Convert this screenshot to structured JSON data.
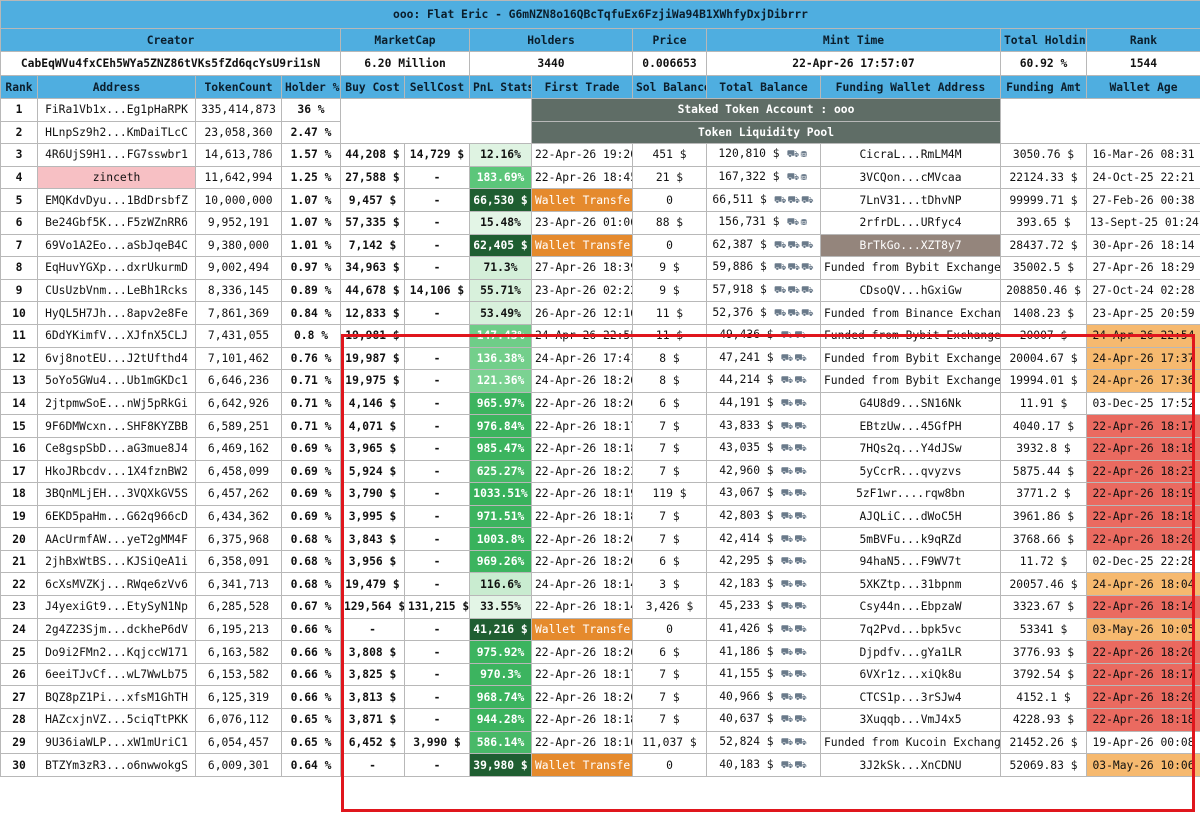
{
  "title": "ooo: Flat Eric - G6mNZN8o16QBcTqfuEx6FzjiWa94B1XWhfyDxjDibrrr",
  "summary": {
    "headers": [
      "Creator",
      "MarketCap",
      "Holders",
      "Price",
      "Mint Time",
      "Total Holding",
      "Rank"
    ],
    "values": [
      "CabEqWVu4fxCEh5WYa5ZNZ86tVKs5fZd6qcYsU9ri1sN",
      "6.20 Million",
      "3440",
      "0.006653",
      "22-Apr-26 17:57:07",
      "60.92 %",
      "1544"
    ]
  },
  "columns": [
    "Rank",
    "Address",
    "TokenCount",
    "Holder %",
    "Buy Cost",
    "SellCost",
    "PnL Stats",
    "First Trade",
    "Sol Balance",
    "Total Balance",
    "Funding Wallet Address",
    "Funding Amt",
    "Wallet Age"
  ],
  "merged": {
    "staked": "Staked Token Account : ooo",
    "pool": "Token Liquidity Pool"
  },
  "colors": {
    "header": "#4faee0",
    "staked": "#5f6d66",
    "wallet_transfer": "#e58a2d",
    "age_orange": "#f6b96f",
    "age_red": "#ea6a60",
    "highlight": "#e0161d"
  },
  "rows": [
    {
      "rank": "1",
      "address": "FiRa1Vb1x...Eg1pHaRPK",
      "count": "335,414,873",
      "pct": "36 %"
    },
    {
      "rank": "2",
      "address": "HLnpSz9h2...KmDaiTLcC",
      "count": "23,058,360",
      "pct": "2.47 %"
    },
    {
      "rank": "3",
      "address": "4R6UjS9H1...FG7sswbr1",
      "count": "14,613,786",
      "pct": "1.57 %",
      "buy": "44,208 $",
      "sell": "14,729 $",
      "pnl": "12.16%",
      "pnlColor": "#dff3e2",
      "pnlText": "#111",
      "first": "22-Apr-26 19:20",
      "sol": "451 $",
      "total": "120,810 $",
      "icons": "⛟⛃",
      "funding": "CicraL...RmLM4M",
      "amt": "3050.76 $",
      "age": "16-Mar-26 08:31",
      "ageClass": ""
    },
    {
      "rank": "4",
      "address": "zinceth",
      "addrClass": "pink",
      "count": "11,642,994",
      "pct": "1.25 %",
      "buy": "27,588 $",
      "sell": "-",
      "pnl": "183.69%",
      "pnlColor": "#5cc67a",
      "pnlText": "#fff",
      "first": "22-Apr-26 18:45",
      "sol": "21 $",
      "total": "167,322 $",
      "icons": "⛟⛃",
      "funding": "3VCQon...cMVcaa",
      "amt": "22124.33 $",
      "age": "24-Oct-25 22:21",
      "ageClass": ""
    },
    {
      "rank": "5",
      "address": "EMQKdvDyu...1BdDrsbfZ",
      "count": "10,000,000",
      "pct": "1.07 %",
      "buy": "9,457 $",
      "sell": "-",
      "pnl": "66,530 $",
      "pnlColor": "#1f5e31",
      "pnlText": "#fff",
      "first": "Wallet Transfer",
      "firstClass": "wt",
      "sol": "0",
      "total": "66,511 $",
      "icons": "⛟⛟⛟",
      "funding": "7LnV31...tDhvNP",
      "amt": "99999.71 $",
      "age": "27-Feb-26 00:38",
      "ageClass": ""
    },
    {
      "rank": "6",
      "address": "Be24Gbf5K...F5zWZnRR6",
      "count": "9,952,191",
      "pct": "1.07 %",
      "buy": "57,335 $",
      "sell": "-",
      "pnl": "15.48%",
      "pnlColor": "#e3f5e6",
      "pnlText": "#111",
      "first": "23-Apr-26 01:06",
      "sol": "88 $",
      "total": "156,731 $",
      "icons": "⛟⛃",
      "funding": "2rfrDL...URfyc4",
      "amt": "393.65 $",
      "age": "13-Sept-25 01:24",
      "ageClass": ""
    },
    {
      "rank": "7",
      "address": "69Vo1A2Eo...aSbJqeB4C",
      "count": "9,380,000",
      "pct": "1.01 %",
      "buy": "7,142 $",
      "sell": "-",
      "pnl": "62,405 $",
      "pnlColor": "#1f5e31",
      "pnlText": "#fff",
      "first": "Wallet Transfer",
      "firstClass": "wt",
      "sol": "0",
      "total": "62,387 $",
      "icons": "⛟⛟⛟",
      "funding": "BrTkGo...XZT8y7",
      "fundClass": "brown",
      "amt": "28437.72 $",
      "age": "30-Apr-26 18:14",
      "ageClass": ""
    },
    {
      "rank": "8",
      "address": "EqHuvYGXp...dxrUkurmD",
      "count": "9,002,494",
      "pct": "0.97 %",
      "buy": "34,963 $",
      "sell": "-",
      "pnl": "71.3%",
      "pnlColor": "#d4efd9",
      "pnlText": "#111",
      "first": "27-Apr-26 18:39",
      "sol": "9 $",
      "total": "59,886 $",
      "icons": "⛟⛟⛟",
      "funding": "Funded from Bybit Exchange",
      "amt": "35002.5 $",
      "age": "27-Apr-26 18:29",
      "ageClass": ""
    },
    {
      "rank": "9",
      "address": "CUsUzbVnm...LeBh1Rcks",
      "count": "8,336,145",
      "pct": "0.89 %",
      "buy": "44,678 $",
      "sell": "14,106 $",
      "pnl": "55.71%",
      "pnlColor": "#d8f1dc",
      "pnlText": "#111",
      "first": "23-Apr-26 02:22",
      "sol": "9 $",
      "total": "57,918 $",
      "icons": "⛟⛟⛟",
      "funding": "CDsoQV...hGxiGw",
      "amt": "208850.46 $",
      "age": "27-Oct-24 02:28",
      "ageClass": ""
    },
    {
      "rank": "10",
      "address": "HyQL5H7Jh...8apv2e8Fe",
      "count": "7,861,369",
      "pct": "0.84 %",
      "buy": "12,833 $",
      "sell": "-",
      "pnl": "53.49%",
      "pnlColor": "#d8f1dc",
      "pnlText": "#111",
      "first": "26-Apr-26 12:16",
      "sol": "11 $",
      "total": "52,376 $",
      "icons": "⛟⛟⛟",
      "funding": "Funded from Binance Exchange",
      "amt": "1408.23 $",
      "age": "23-Apr-25 20:59",
      "ageClass": ""
    },
    {
      "rank": "11",
      "address": "6DdYKimfV...XJfnX5CLJ",
      "count": "7,431,055",
      "pct": "0.8 %",
      "buy": "19,981 $",
      "sell": "-",
      "pnl": "147.43%",
      "pnlColor": "#6fcd88",
      "pnlText": "#fff",
      "first": "24-Apr-26 22:55",
      "sol": "11 $",
      "total": "49,436 $",
      "icons": "⛟⛟",
      "funding": "Funded from Bybit Exchange",
      "amt": "20007 $",
      "age": "24-Apr-26 22:54",
      "ageClass": "age-orange"
    },
    {
      "rank": "12",
      "address": "6vj8notEU...J2tUfthd4",
      "count": "7,101,462",
      "pct": "0.76 %",
      "buy": "19,987 $",
      "sell": "-",
      "pnl": "136.38%",
      "pnlColor": "#73cf8b",
      "pnlText": "#fff",
      "first": "24-Apr-26 17:41",
      "sol": "8 $",
      "total": "47,241 $",
      "icons": "⛟⛟",
      "funding": "Funded from Bybit Exchange",
      "amt": "20004.67 $",
      "age": "24-Apr-26 17:37",
      "ageClass": "age-orange"
    },
    {
      "rank": "13",
      "address": "5oYo5GWu4...Ub1mGKDc1",
      "count": "6,646,236",
      "pct": "0.71 %",
      "buy": "19,975 $",
      "sell": "-",
      "pnl": "121.36%",
      "pnlColor": "#7bd292",
      "pnlText": "#fff",
      "first": "24-Apr-26 18:26",
      "sol": "8 $",
      "total": "44,214 $",
      "icons": "⛟⛟",
      "funding": "Funded from Bybit Exchange",
      "amt": "19994.01 $",
      "age": "24-Apr-26 17:36",
      "ageClass": "age-orange"
    },
    {
      "rank": "14",
      "address": "2jtpmwSoE...nWj5pRkGi",
      "count": "6,642,926",
      "pct": "0.71 %",
      "buy": "4,146 $",
      "sell": "-",
      "pnl": "965.97%",
      "pnlColor": "#3cb45f",
      "pnlText": "#fff",
      "first": "22-Apr-26 18:20",
      "sol": "6 $",
      "total": "44,191 $",
      "icons": "⛟⛟",
      "funding": "G4U8d9...SN16Nk",
      "amt": "11.91 $",
      "age": "03-Dec-25 17:52",
      "ageClass": ""
    },
    {
      "rank": "15",
      "address": "9F6DMWcxn...SHF8KYZBB",
      "count": "6,589,251",
      "pct": "0.71 %",
      "buy": "4,071 $",
      "sell": "-",
      "pnl": "976.84%",
      "pnlColor": "#3cb45f",
      "pnlText": "#fff",
      "first": "22-Apr-26 18:17",
      "sol": "7 $",
      "total": "43,833 $",
      "icons": "⛟⛟",
      "funding": "EBtzUw...45GfPH",
      "amt": "4040.17 $",
      "age": "22-Apr-26 18:17",
      "ageClass": "age-red"
    },
    {
      "rank": "16",
      "address": "Ce8gspSbD...aG3mue8J4",
      "count": "6,469,162",
      "pct": "0.69 %",
      "buy": "3,965 $",
      "sell": "-",
      "pnl": "985.47%",
      "pnlColor": "#3cb45f",
      "pnlText": "#fff",
      "first": "22-Apr-26 18:18",
      "sol": "7 $",
      "total": "43,035 $",
      "icons": "⛟⛟",
      "funding": "7HQs2q...Y4dJSw",
      "amt": "3932.8 $",
      "age": "22-Apr-26 18:18",
      "ageClass": "age-red"
    },
    {
      "rank": "17",
      "address": "HkoJRbcdv...1X4fznBW2",
      "count": "6,458,099",
      "pct": "0.69 %",
      "buy": "5,924 $",
      "sell": "-",
      "pnl": "625.27%",
      "pnlColor": "#48b968",
      "pnlText": "#fff",
      "first": "22-Apr-26 18:23",
      "sol": "7 $",
      "total": "42,960 $",
      "icons": "⛟⛟",
      "funding": "5yCcrR...qvyzvs",
      "amt": "5875.44 $",
      "age": "22-Apr-26 18:23",
      "ageClass": "age-red"
    },
    {
      "rank": "18",
      "address": "3BQnMLjEH...3VQXkGV5S",
      "count": "6,457,262",
      "pct": "0.69 %",
      "buy": "3,790 $",
      "sell": "-",
      "pnl": "1033.51%",
      "pnlColor": "#38b25c",
      "pnlText": "#fff",
      "first": "22-Apr-26 18:19",
      "sol": "119 $",
      "total": "43,067 $",
      "icons": "⛟⛟",
      "funding": "5zF1wr....rqw8bn",
      "amt": "3771.2 $",
      "age": "22-Apr-26 18:19",
      "ageClass": "age-red"
    },
    {
      "rank": "19",
      "address": "6EKD5paHm...G62q966cD",
      "count": "6,434,362",
      "pct": "0.69 %",
      "buy": "3,995 $",
      "sell": "-",
      "pnl": "971.51%",
      "pnlColor": "#3cb45f",
      "pnlText": "#fff",
      "first": "22-Apr-26 18:18",
      "sol": "7 $",
      "total": "42,803 $",
      "icons": "⛟⛟",
      "funding": "AJQLiC...dWoC5H",
      "amt": "3961.86 $",
      "age": "22-Apr-26 18:18",
      "ageClass": "age-red"
    },
    {
      "rank": "20",
      "address": "AAcUrmfAW...yeT2gMM4F",
      "count": "6,375,968",
      "pct": "0.68 %",
      "buy": "3,843 $",
      "sell": "-",
      "pnl": "1003.8%",
      "pnlColor": "#38b25c",
      "pnlText": "#fff",
      "first": "22-Apr-26 18:20",
      "sol": "7 $",
      "total": "42,414 $",
      "icons": "⛟⛟",
      "funding": "5mBVFu...k9qRZd",
      "amt": "3768.66 $",
      "age": "22-Apr-26 18:20",
      "ageClass": "age-red"
    },
    {
      "rank": "21",
      "address": "2jhBxWtBS...KJSiQeA1i",
      "count": "6,358,091",
      "pct": "0.68 %",
      "buy": "3,956 $",
      "sell": "-",
      "pnl": "969.26%",
      "pnlColor": "#3cb45f",
      "pnlText": "#fff",
      "first": "22-Apr-26 18:20",
      "sol": "6 $",
      "total": "42,295 $",
      "icons": "⛟⛟",
      "funding": "94haN5...F9WV7t",
      "amt": "11.72 $",
      "age": "02-Dec-25 22:28",
      "ageClass": ""
    },
    {
      "rank": "22",
      "address": "6cXsMVZKj...RWqe6zVv6",
      "count": "6,341,713",
      "pct": "0.68 %",
      "buy": "19,479 $",
      "sell": "-",
      "pnl": "116.6%",
      "pnlColor": "#c9ecd0",
      "pnlText": "#111",
      "first": "24-Apr-26 18:14",
      "sol": "3 $",
      "total": "42,183 $",
      "icons": "⛟⛟",
      "funding": "5XKZtp...31bpnm",
      "amt": "20057.46 $",
      "age": "24-Apr-26 18:04",
      "ageClass": "age-orange"
    },
    {
      "rank": "23",
      "address": "J4yexiGt9...EtySyN1Np",
      "count": "6,285,528",
      "pct": "0.67 %",
      "buy": "129,564 $",
      "sell": "131,215 $",
      "pnl": "33.55%",
      "pnlColor": "#e3f5e6",
      "pnlText": "#111",
      "first": "22-Apr-26 18:14",
      "sol": "3,426 $",
      "total": "45,233 $",
      "icons": "⛟⛟",
      "funding": "Csy44n...EbpzaW",
      "amt": "3323.67 $",
      "age": "22-Apr-26 18:14",
      "ageClass": "age-red"
    },
    {
      "rank": "24",
      "address": "2g4Z23Sjm...dckheP6dV",
      "count": "6,195,213",
      "pct": "0.66 %",
      "buy": "-",
      "sell": "-",
      "pnl": "41,216 $",
      "pnlColor": "#1f5e31",
      "pnlText": "#fff",
      "first": "Wallet Transfer",
      "firstClass": "wt",
      "sol": "0",
      "total": "41,426 $",
      "icons": "⛟⛟",
      "funding": "7q2Pvd...bpk5vc",
      "amt": "53341 $",
      "age": "03-May-26 10:05",
      "ageClass": "age-orange"
    },
    {
      "rank": "25",
      "address": "Do9i2FMn2...KqjccW171",
      "count": "6,163,582",
      "pct": "0.66 %",
      "buy": "3,808 $",
      "sell": "-",
      "pnl": "975.92%",
      "pnlColor": "#3cb45f",
      "pnlText": "#fff",
      "first": "22-Apr-26 18:20",
      "sol": "6 $",
      "total": "41,186 $",
      "icons": "⛟⛟",
      "funding": "Djpdfv...gYa1LR",
      "amt": "3776.93 $",
      "age": "22-Apr-26 18:20",
      "ageClass": "age-red"
    },
    {
      "rank": "26",
      "address": "6eeiTJvCf...wL7WwLb75",
      "count": "6,153,582",
      "pct": "0.66 %",
      "buy": "3,825 $",
      "sell": "-",
      "pnl": "970.3%",
      "pnlColor": "#3cb45f",
      "pnlText": "#fff",
      "first": "22-Apr-26 18:17",
      "sol": "7 $",
      "total": "41,155 $",
      "icons": "⛟⛟",
      "funding": "6VXr1z...xiQk8u",
      "amt": "3792.54 $",
      "age": "22-Apr-26 18:17",
      "ageClass": "age-red"
    },
    {
      "rank": "27",
      "address": "BQZ8pZ1Pi...xfsM1GhTH",
      "count": "6,125,319",
      "pct": "0.66 %",
      "buy": "3,813 $",
      "sell": "-",
      "pnl": "968.74%",
      "pnlColor": "#3cb45f",
      "pnlText": "#fff",
      "first": "22-Apr-26 18:20",
      "sol": "7 $",
      "total": "40,966 $",
      "icons": "⛟⛟",
      "funding": "CTCS1p...3rSJw4",
      "amt": "4152.1 $",
      "age": "22-Apr-26 18:20",
      "ageClass": "age-red"
    },
    {
      "rank": "28",
      "address": "HAZcxjnVZ...5ciqTtPKK",
      "count": "6,076,112",
      "pct": "0.65 %",
      "buy": "3,871 $",
      "sell": "-",
      "pnl": "944.28%",
      "pnlColor": "#3cb45f",
      "pnlText": "#fff",
      "first": "22-Apr-26 18:18",
      "sol": "7 $",
      "total": "40,637 $",
      "icons": "⛟⛟",
      "funding": "3Xuqqb...VmJ4x5",
      "amt": "4228.93 $",
      "age": "22-Apr-26 18:18",
      "ageClass": "age-red"
    },
    {
      "rank": "29",
      "address": "9U36iaWLP...xW1mUriC1",
      "count": "6,054,457",
      "pct": "0.65 %",
      "buy": "6,452 $",
      "sell": "3,990 $",
      "pnl": "586.14%",
      "pnlColor": "#48b968",
      "pnlText": "#fff",
      "first": "22-Apr-26 18:16",
      "sol": "11,037 $",
      "total": "52,824 $",
      "icons": "⛟⛟",
      "funding": "Funded from Kucoin Exchange",
      "amt": "21452.26 $",
      "age": "19-Apr-26 00:08",
      "ageClass": ""
    },
    {
      "rank": "30",
      "address": "BTZYm3zR3...o6nwwokgS",
      "count": "6,009,301",
      "pct": "0.64 %",
      "buy": "-",
      "sell": "-",
      "pnl": "39,980 $",
      "pnlColor": "#1f5e31",
      "pnlText": "#fff",
      "first": "Wallet Transfer",
      "firstClass": "wt",
      "sol": "0",
      "total": "40,183 $",
      "icons": "⛟⛟",
      "funding": "3J2kSk...XnCDNU",
      "amt": "52069.83 $",
      "age": "03-May-26 10:06",
      "ageClass": "age-orange"
    }
  ]
}
